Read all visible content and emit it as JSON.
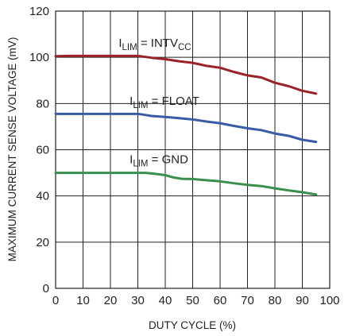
{
  "chart_data": {
    "type": "line",
    "xlabel": "DUTY CYCLE (%)",
    "ylabel": "MAXIMUM CURRENT SENSE VOLTAGE (mV)",
    "xlim": [
      0,
      100
    ],
    "ylim": [
      0,
      120
    ],
    "xticks": [
      0,
      10,
      20,
      30,
      40,
      50,
      60,
      70,
      80,
      90,
      100
    ],
    "yticks": [
      0,
      20,
      40,
      60,
      80,
      100,
      120
    ],
    "grid": true,
    "series": [
      {
        "label_main": "I",
        "label_sub": "LIM",
        "label_rest": " = INTV",
        "label_sub2": "CC",
        "color": "#9b2226",
        "x": [
          0,
          5,
          10,
          15,
          20,
          25,
          30,
          32,
          35,
          40,
          45,
          50,
          55,
          60,
          65,
          70,
          75,
          80,
          85,
          90,
          95
        ],
        "y": [
          100.5,
          100.6,
          100.6,
          100.6,
          100.6,
          100.6,
          100.6,
          100.3,
          99.8,
          99.2,
          98.3,
          97.6,
          96.3,
          95.5,
          93.7,
          92.2,
          91.3,
          89.0,
          87.5,
          85.5,
          84.3
        ]
      },
      {
        "label_main": "I",
        "label_sub": "LIM",
        "label_rest": " = FLOAT",
        "label_sub2": "",
        "color": "#3a5ba5",
        "x": [
          0,
          5,
          10,
          15,
          20,
          25,
          30,
          32,
          35,
          40,
          45,
          50,
          55,
          60,
          65,
          70,
          75,
          80,
          85,
          90,
          95
        ],
        "y": [
          75.5,
          75.5,
          75.5,
          75.5,
          75.5,
          75.5,
          75.5,
          75.2,
          74.6,
          74.2,
          73.7,
          73.1,
          72.2,
          71.5,
          70.3,
          69.3,
          68.5,
          67.0,
          66.0,
          64.3,
          63.4
        ]
      },
      {
        "label_main": "I",
        "label_sub": "LIM",
        "label_rest": " = GND",
        "label_sub2": "",
        "color": "#3b8f4c",
        "x": [
          0,
          5,
          10,
          15,
          20,
          25,
          30,
          33,
          36,
          40,
          43,
          46,
          50,
          55,
          60,
          65,
          70,
          75,
          80,
          85,
          90,
          95
        ],
        "y": [
          50.0,
          50.0,
          50.0,
          50.0,
          50.0,
          50.0,
          50.0,
          50.0,
          49.6,
          49.0,
          48.0,
          47.4,
          47.3,
          46.8,
          46.3,
          45.5,
          44.8,
          44.3,
          43.3,
          42.4,
          41.6,
          40.6
        ]
      }
    ]
  }
}
